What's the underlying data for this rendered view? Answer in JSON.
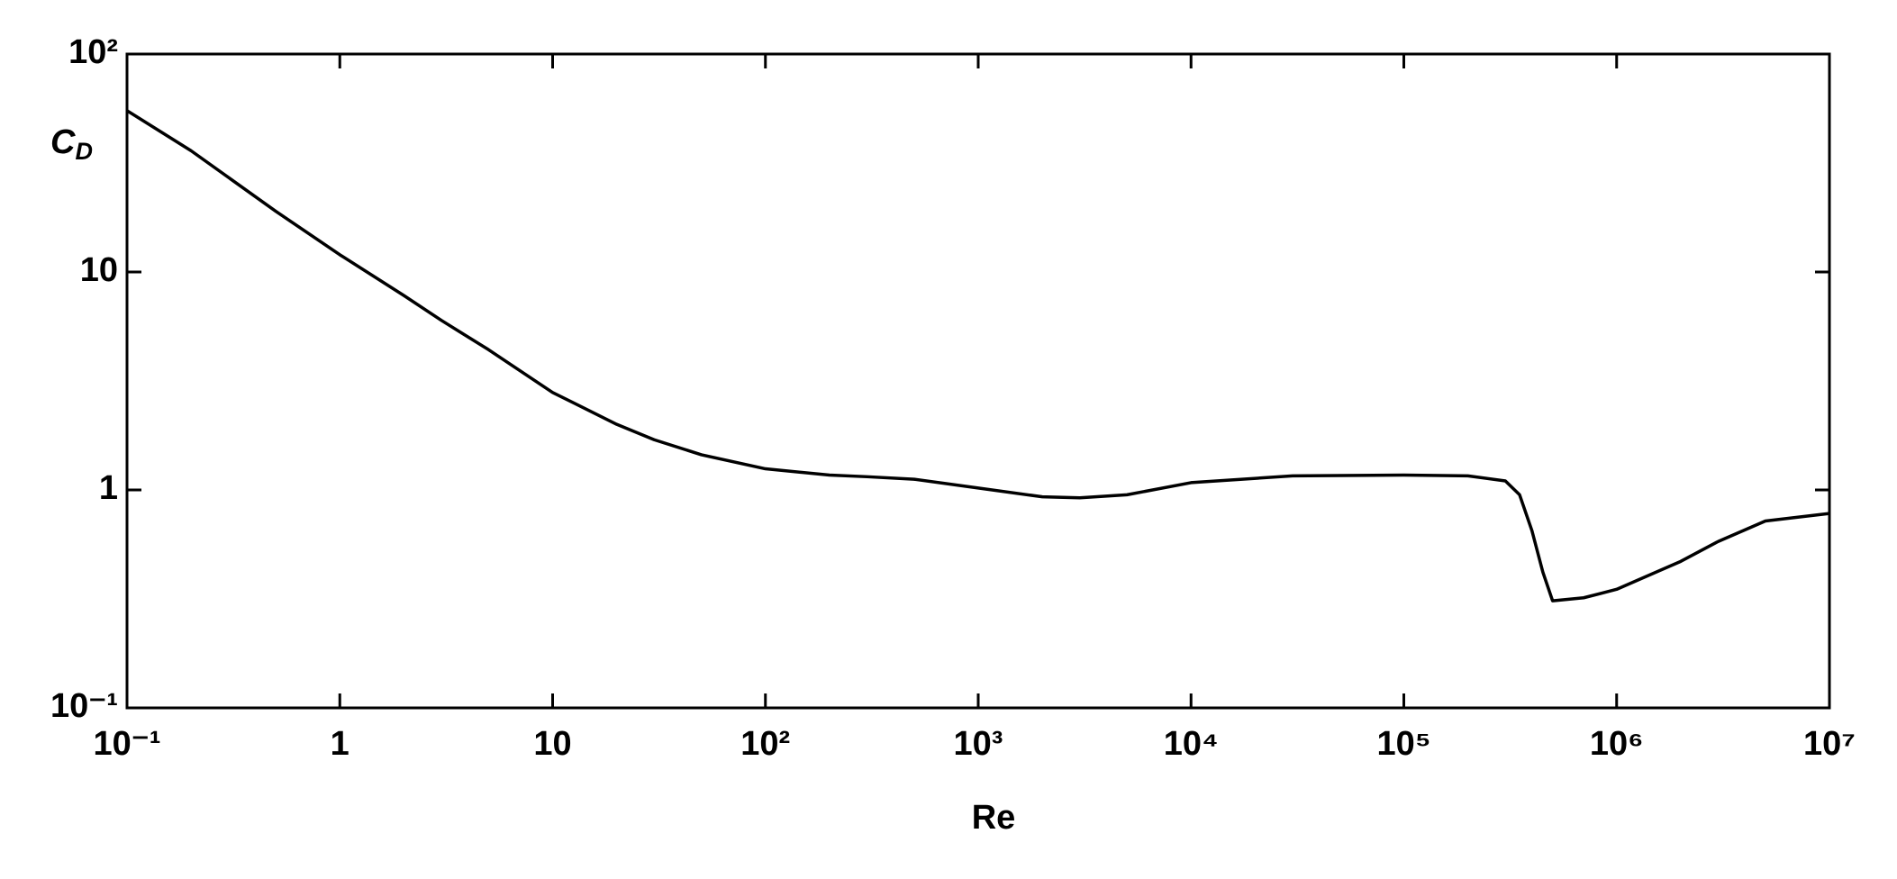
{
  "chart_data": {
    "type": "line",
    "x_label": "Re",
    "y_label": "CD",
    "xscale": "log",
    "yscale": "log",
    "xlim": [
      0.1,
      10000000
    ],
    "ylim": [
      0.1,
      100
    ],
    "xticks": [
      {
        "value": 0.1,
        "label": "10⁻¹"
      },
      1,
      10,
      {
        "value": 100,
        "label": "10²"
      },
      {
        "value": 1000,
        "label": "10³"
      },
      {
        "value": 10000,
        "label": "10⁴"
      },
      {
        "value": 100000,
        "label": "10⁵"
      },
      {
        "value": 1000000,
        "label": "10⁶"
      },
      {
        "value": 10000000,
        "label": "10⁷"
      }
    ],
    "yticks": [
      {
        "value": 0.1,
        "label": "10⁻¹"
      },
      1,
      10,
      {
        "value": 100,
        "label": "10²"
      }
    ],
    "series": [
      {
        "color": "#000000",
        "x": [
          0.1,
          0.2,
          0.5,
          1,
          2,
          3,
          5,
          10,
          20,
          30,
          50,
          100,
          200,
          300,
          500,
          1000,
          2000,
          3000,
          5000,
          10000,
          30000,
          100000,
          200000,
          300000,
          350000,
          400000,
          450000,
          500000,
          700000,
          1000000,
          2000000,
          3000000,
          5000000,
          10000000
        ],
        "values": [
          55,
          36,
          19,
          12,
          7.8,
          6.0,
          4.4,
          2.8,
          2.0,
          1.7,
          1.45,
          1.25,
          1.17,
          1.15,
          1.12,
          1.02,
          0.93,
          0.92,
          0.95,
          1.08,
          1.16,
          1.17,
          1.16,
          1.1,
          0.95,
          0.65,
          0.42,
          0.31,
          0.32,
          0.35,
          0.47,
          0.58,
          0.72,
          0.78
        ]
      }
    ]
  }
}
